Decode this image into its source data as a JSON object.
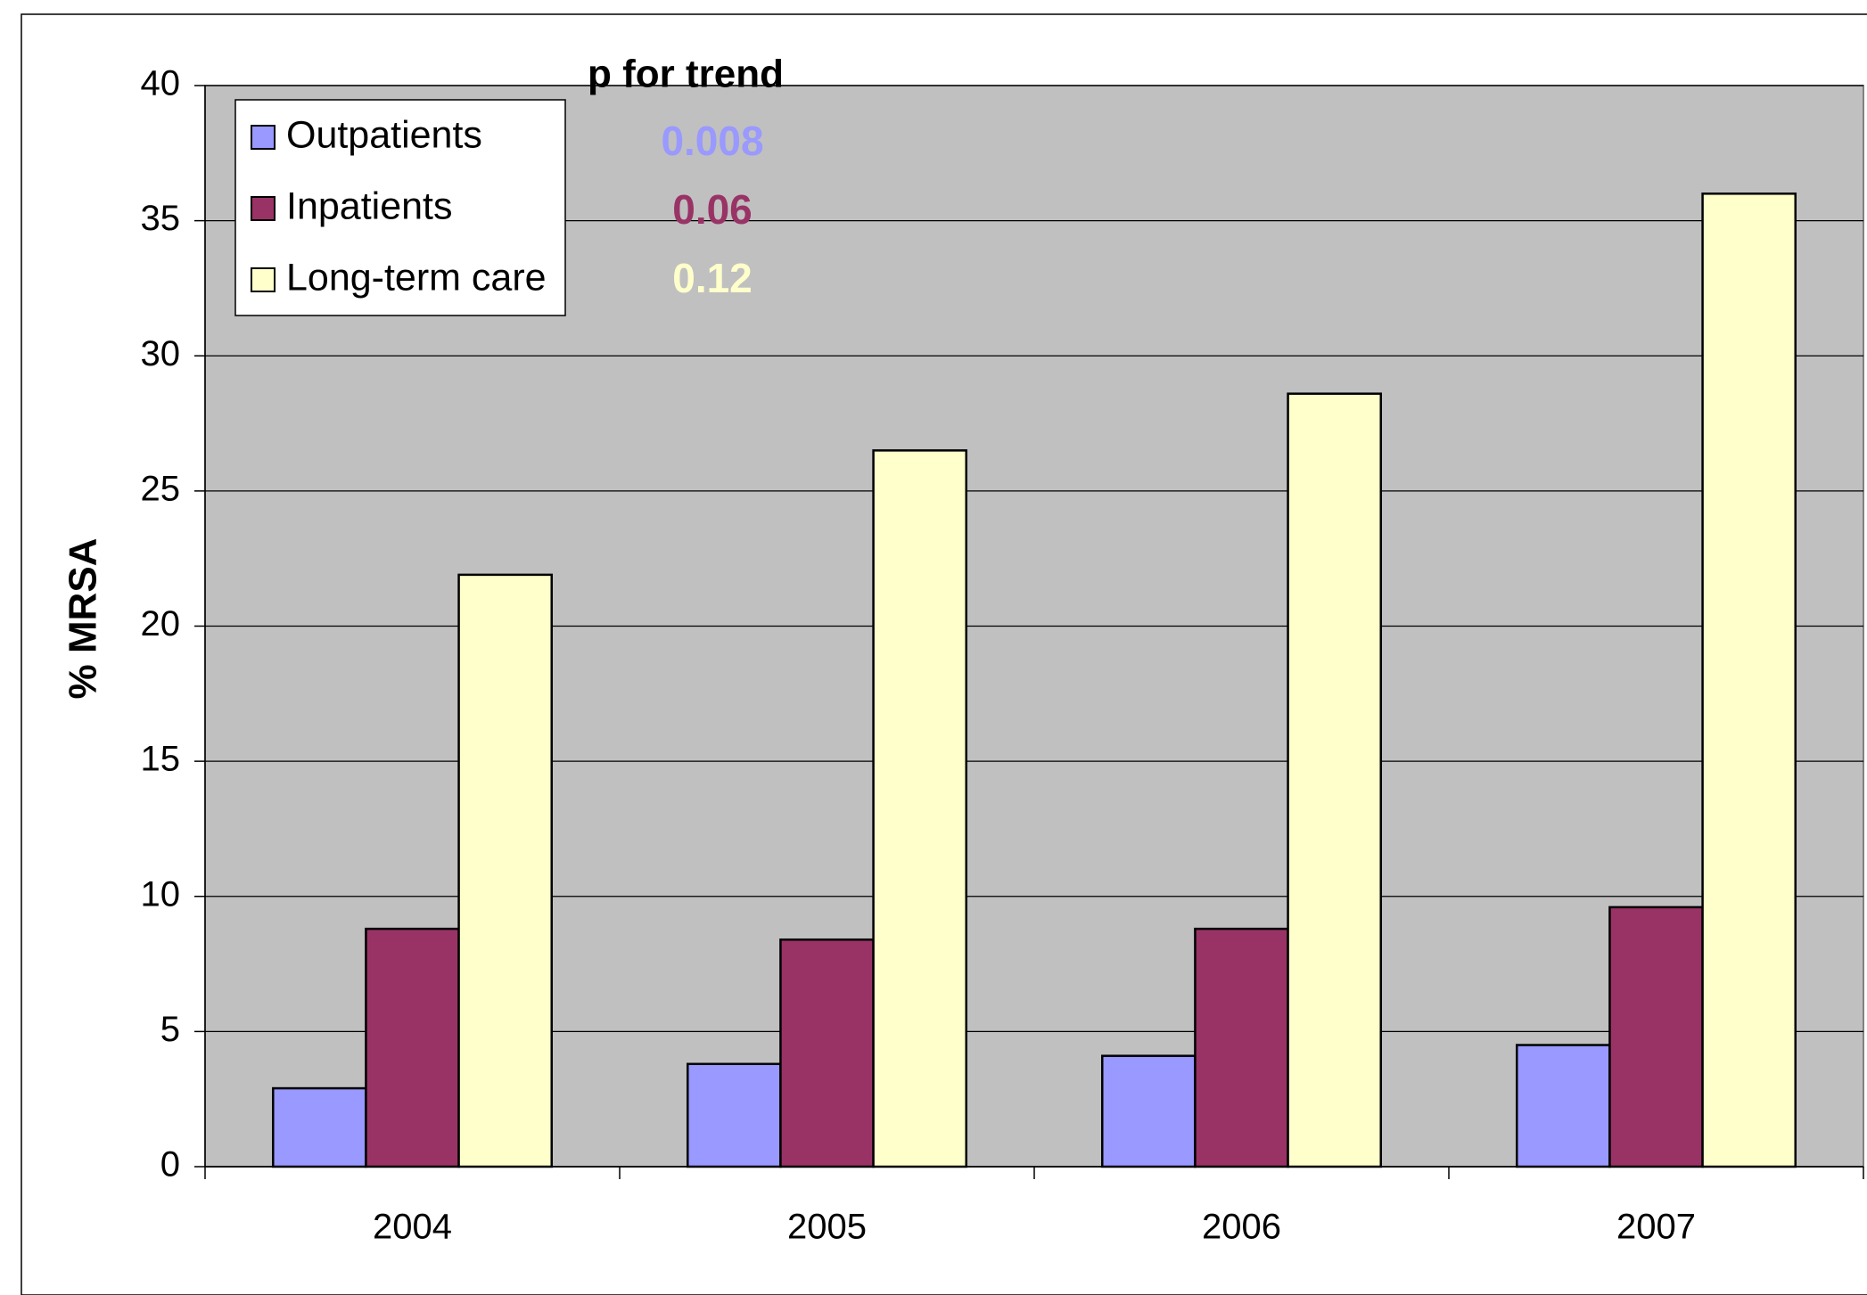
{
  "chart_data": {
    "type": "bar",
    "y_label": "% MRSA",
    "annotation_title": "p for trend",
    "categories": [
      "2004",
      "2005",
      "2006",
      "2007"
    ],
    "series": [
      {
        "name": "Outpatients",
        "color": "#9999ff",
        "values": [
          2.9,
          3.8,
          4.1,
          4.5
        ],
        "p_trend": "0.008"
      },
      {
        "name": "Inpatients",
        "color": "#993366",
        "values": [
          8.8,
          8.4,
          8.8,
          9.6
        ],
        "p_trend": "0.06"
      },
      {
        "name": "Long-term care",
        "color": "#ffffcc",
        "values": [
          21.9,
          26.5,
          28.6,
          36.0
        ],
        "p_trend": "0.12"
      }
    ],
    "ylim": [
      0,
      40
    ],
    "yticks": [
      0,
      5,
      10,
      15,
      20,
      25,
      30,
      35,
      40
    ],
    "grid": true,
    "legend": "top-left",
    "plot_background": "#c0c0c0"
  }
}
